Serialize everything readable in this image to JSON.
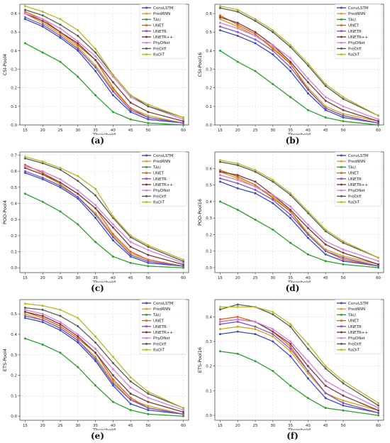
{
  "chart_data": [
    {
      "type": "line",
      "panel_label": "(a)",
      "xlabel": "Threshold",
      "ylabel": "CSI-Pool4",
      "x": [
        15,
        20,
        25,
        30,
        35,
        40,
        45,
        50,
        60
      ],
      "ylim": [
        0,
        0.65
      ],
      "yticks": [
        0.0,
        0.1,
        0.2,
        0.3,
        0.4,
        0.5,
        0.6
      ],
      "grid": true,
      "legend": "top-right",
      "series": [
        {
          "name": "ConvLSTM",
          "color": "#3b4cc0",
          "values": [
            0.57,
            0.53,
            0.47,
            0.4,
            0.29,
            0.16,
            0.07,
            0.03,
            0.01
          ]
        },
        {
          "name": "PredRNN",
          "color": "#d4a017",
          "values": [
            0.6,
            0.55,
            0.49,
            0.42,
            0.32,
            0.19,
            0.09,
            0.05,
            0.01
          ]
        },
        {
          "name": "TAU",
          "color": "#2ca02c",
          "values": [
            0.44,
            0.39,
            0.34,
            0.26,
            0.16,
            0.07,
            0.03,
            0.01,
            0.0
          ]
        },
        {
          "name": "UNET",
          "color": "#e06020",
          "values": [
            0.61,
            0.57,
            0.5,
            0.43,
            0.35,
            0.2,
            0.09,
            0.04,
            0.01
          ]
        },
        {
          "name": "UNETR",
          "color": "#7e57c2",
          "values": [
            0.58,
            0.54,
            0.48,
            0.41,
            0.31,
            0.18,
            0.08,
            0.04,
            0.01
          ]
        },
        {
          "name": "UNETR++",
          "color": "#7a3b3b",
          "values": [
            0.6,
            0.56,
            0.5,
            0.44,
            0.35,
            0.23,
            0.12,
            0.07,
            0.02
          ]
        },
        {
          "name": "PhyDNet",
          "color": "#d47fd8",
          "values": [
            0.6,
            0.57,
            0.52,
            0.45,
            0.37,
            0.26,
            0.15,
            0.1,
            0.03
          ]
        },
        {
          "name": "PreDiff",
          "color": "#5a5a5a",
          "values": [
            0.62,
            0.59,
            0.54,
            0.48,
            0.39,
            0.27,
            0.16,
            0.1,
            0.04
          ]
        },
        {
          "name": "RaDiT",
          "color": "#b8b820",
          "values": [
            0.64,
            0.61,
            0.57,
            0.51,
            0.41,
            0.27,
            0.16,
            0.11,
            0.04
          ]
        }
      ]
    },
    {
      "type": "line",
      "panel_label": "(b)",
      "xlabel": "Threshold",
      "ylabel": "CSI-Pool16",
      "x": [
        15,
        20,
        25,
        30,
        35,
        40,
        45,
        50,
        60
      ],
      "ylim": [
        0,
        0.65
      ],
      "yticks": [
        0.0,
        0.1,
        0.2,
        0.3,
        0.4,
        0.5,
        0.6
      ],
      "grid": true,
      "legend": "top-right",
      "series": [
        {
          "name": "ConvLSTM",
          "color": "#3b4cc0",
          "values": [
            0.51,
            0.48,
            0.44,
            0.38,
            0.29,
            0.17,
            0.08,
            0.04,
            0.01
          ]
        },
        {
          "name": "PredRNN",
          "color": "#d4a017",
          "values": [
            0.57,
            0.53,
            0.48,
            0.42,
            0.33,
            0.2,
            0.1,
            0.06,
            0.02
          ]
        },
        {
          "name": "TAU",
          "color": "#2ca02c",
          "values": [
            0.4,
            0.34,
            0.29,
            0.22,
            0.15,
            0.08,
            0.04,
            0.02,
            0.0
          ]
        },
        {
          "name": "UNET",
          "color": "#e06020",
          "values": [
            0.59,
            0.54,
            0.49,
            0.41,
            0.33,
            0.19,
            0.09,
            0.05,
            0.01
          ]
        },
        {
          "name": "UNETR",
          "color": "#7e57c2",
          "values": [
            0.53,
            0.5,
            0.46,
            0.4,
            0.31,
            0.19,
            0.09,
            0.05,
            0.01
          ]
        },
        {
          "name": "UNETR++",
          "color": "#7a3b3b",
          "values": [
            0.58,
            0.55,
            0.5,
            0.43,
            0.34,
            0.23,
            0.13,
            0.08,
            0.02
          ]
        },
        {
          "name": "PhyDNet",
          "color": "#d47fd8",
          "values": [
            0.55,
            0.52,
            0.48,
            0.43,
            0.36,
            0.25,
            0.15,
            0.1,
            0.03
          ]
        },
        {
          "name": "PreDiff",
          "color": "#5a5a5a",
          "values": [
            0.63,
            0.61,
            0.56,
            0.5,
            0.42,
            0.32,
            0.21,
            0.14,
            0.05
          ]
        },
        {
          "name": "RaDiT",
          "color": "#b8b820",
          "values": [
            0.64,
            0.62,
            0.57,
            0.51,
            0.43,
            0.33,
            0.22,
            0.15,
            0.05
          ]
        }
      ]
    },
    {
      "type": "line",
      "panel_label": "(c)",
      "xlabel": "Threshold",
      "ylabel": "POD-Pool4",
      "x": [
        15,
        20,
        25,
        30,
        35,
        40,
        45,
        50,
        60
      ],
      "ylim": [
        -0.03,
        0.72
      ],
      "yticks": [
        0.0,
        0.1,
        0.2,
        0.3,
        0.4,
        0.5,
        0.6,
        0.7
      ],
      "grid": true,
      "legend": "top-right",
      "series": [
        {
          "name": "ConvLSTM",
          "color": "#3b4cc0",
          "values": [
            0.59,
            0.55,
            0.5,
            0.43,
            0.31,
            0.17,
            0.07,
            0.03,
            0.01
          ]
        },
        {
          "name": "PredRNN",
          "color": "#d4a017",
          "values": [
            0.62,
            0.58,
            0.52,
            0.44,
            0.34,
            0.2,
            0.09,
            0.05,
            0.01
          ]
        },
        {
          "name": "TAU",
          "color": "#2ca02c",
          "values": [
            0.46,
            0.41,
            0.35,
            0.27,
            0.16,
            0.07,
            0.03,
            0.01,
            0.0
          ]
        },
        {
          "name": "UNET",
          "color": "#e06020",
          "values": [
            0.64,
            0.59,
            0.53,
            0.46,
            0.37,
            0.21,
            0.1,
            0.05,
            0.01
          ]
        },
        {
          "name": "UNETR",
          "color": "#7e57c2",
          "values": [
            0.6,
            0.56,
            0.51,
            0.44,
            0.33,
            0.19,
            0.08,
            0.04,
            0.01
          ]
        },
        {
          "name": "UNETR++",
          "color": "#7a3b3b",
          "values": [
            0.62,
            0.58,
            0.53,
            0.46,
            0.37,
            0.25,
            0.13,
            0.08,
            0.02
          ]
        },
        {
          "name": "PhyDNet",
          "color": "#d47fd8",
          "values": [
            0.63,
            0.6,
            0.55,
            0.48,
            0.39,
            0.27,
            0.16,
            0.11,
            0.03
          ]
        },
        {
          "name": "PreDiff",
          "color": "#5a5a5a",
          "values": [
            0.68,
            0.65,
            0.61,
            0.54,
            0.45,
            0.31,
            0.19,
            0.13,
            0.04
          ]
        },
        {
          "name": "RaDiT",
          "color": "#b8b820",
          "values": [
            0.69,
            0.66,
            0.62,
            0.57,
            0.49,
            0.32,
            0.2,
            0.14,
            0.05
          ]
        }
      ]
    },
    {
      "type": "line",
      "panel_label": "(d)",
      "xlabel": "Threshold",
      "ylabel": "POD-Pool16",
      "x": [
        15,
        20,
        25,
        30,
        35,
        40,
        45,
        50,
        60
      ],
      "ylim": [
        -0.03,
        0.7
      ],
      "yticks": [
        0.0,
        0.1,
        0.2,
        0.3,
        0.4,
        0.5,
        0.6
      ],
      "grid": true,
      "legend": "top-right",
      "series": [
        {
          "name": "ConvLSTM",
          "color": "#3b4cc0",
          "values": [
            0.52,
            0.48,
            0.45,
            0.39,
            0.3,
            0.18,
            0.08,
            0.04,
            0.01
          ]
        },
        {
          "name": "PredRNN",
          "color": "#d4a017",
          "values": [
            0.58,
            0.54,
            0.49,
            0.43,
            0.34,
            0.21,
            0.11,
            0.07,
            0.02
          ]
        },
        {
          "name": "TAU",
          "color": "#2ca02c",
          "values": [
            0.4,
            0.35,
            0.29,
            0.23,
            0.15,
            0.08,
            0.04,
            0.02,
            0.0
          ]
        },
        {
          "name": "UNET",
          "color": "#e06020",
          "values": [
            0.59,
            0.55,
            0.5,
            0.42,
            0.34,
            0.2,
            0.1,
            0.05,
            0.01
          ]
        },
        {
          "name": "UNETR",
          "color": "#7e57c2",
          "values": [
            0.54,
            0.51,
            0.47,
            0.41,
            0.32,
            0.2,
            0.1,
            0.06,
            0.01
          ]
        },
        {
          "name": "UNETR++",
          "color": "#7a3b3b",
          "values": [
            0.58,
            0.56,
            0.52,
            0.44,
            0.35,
            0.24,
            0.14,
            0.09,
            0.02
          ]
        },
        {
          "name": "PhyDNet",
          "color": "#d47fd8",
          "values": [
            0.56,
            0.53,
            0.49,
            0.44,
            0.37,
            0.26,
            0.16,
            0.11,
            0.04
          ]
        },
        {
          "name": "PreDiff",
          "color": "#5a5a5a",
          "values": [
            0.64,
            0.62,
            0.58,
            0.52,
            0.44,
            0.33,
            0.22,
            0.15,
            0.06
          ]
        },
        {
          "name": "RaDiT",
          "color": "#b8b820",
          "values": [
            0.65,
            0.63,
            0.59,
            0.53,
            0.45,
            0.34,
            0.23,
            0.16,
            0.06
          ]
        }
      ]
    },
    {
      "type": "line",
      "panel_label": "(e)",
      "xlabel": "Threshold",
      "ylabel": "ETS-Pool4",
      "x": [
        15,
        20,
        25,
        30,
        35,
        40,
        45,
        50,
        60
      ],
      "ylim": [
        -0.02,
        0.57
      ],
      "yticks": [
        0.0,
        0.1,
        0.2,
        0.3,
        0.4,
        0.5
      ],
      "grid": true,
      "legend": "top-right",
      "series": [
        {
          "name": "ConvLSTM",
          "color": "#3b4cc0",
          "values": [
            0.48,
            0.46,
            0.42,
            0.36,
            0.27,
            0.15,
            0.06,
            0.03,
            0.01
          ]
        },
        {
          "name": "PredRNN",
          "color": "#d4a017",
          "values": [
            0.5,
            0.47,
            0.43,
            0.37,
            0.29,
            0.17,
            0.08,
            0.05,
            0.01
          ]
        },
        {
          "name": "TAU",
          "color": "#2ca02c",
          "values": [
            0.38,
            0.35,
            0.31,
            0.24,
            0.15,
            0.07,
            0.03,
            0.01,
            0.0
          ]
        },
        {
          "name": "UNET",
          "color": "#e06020",
          "values": [
            0.51,
            0.48,
            0.44,
            0.38,
            0.31,
            0.18,
            0.09,
            0.04,
            0.01
          ]
        },
        {
          "name": "UNETR",
          "color": "#7e57c2",
          "values": [
            0.49,
            0.47,
            0.43,
            0.37,
            0.28,
            0.16,
            0.08,
            0.04,
            0.01
          ]
        },
        {
          "name": "UNETR++",
          "color": "#7a3b3b",
          "values": [
            0.51,
            0.49,
            0.45,
            0.39,
            0.31,
            0.2,
            0.11,
            0.07,
            0.02
          ]
        },
        {
          "name": "PhyDNet",
          "color": "#d47fd8",
          "values": [
            0.52,
            0.5,
            0.46,
            0.4,
            0.33,
            0.23,
            0.14,
            0.09,
            0.03
          ]
        },
        {
          "name": "PreDiff",
          "color": "#5a5a5a",
          "values": [
            0.53,
            0.52,
            0.49,
            0.44,
            0.36,
            0.26,
            0.17,
            0.11,
            0.04
          ]
        },
        {
          "name": "RaDiT",
          "color": "#b8b820",
          "values": [
            0.55,
            0.54,
            0.52,
            0.48,
            0.39,
            0.29,
            0.19,
            0.12,
            0.04
          ]
        }
      ]
    },
    {
      "type": "line",
      "panel_label": "(f)",
      "xlabel": "Threshold",
      "ylabel": "ETS-Pool16",
      "x": [
        15,
        20,
        25,
        30,
        35,
        40,
        45,
        50,
        60
      ],
      "ylim": [
        -0.02,
        0.47
      ],
      "yticks": [
        0.0,
        0.1,
        0.2,
        0.3,
        0.4
      ],
      "grid": true,
      "legend": "top-right",
      "series": [
        {
          "name": "ConvLSTM",
          "color": "#3b4cc0",
          "values": [
            0.33,
            0.34,
            0.33,
            0.3,
            0.24,
            0.15,
            0.07,
            0.04,
            0.01
          ]
        },
        {
          "name": "PredRNN",
          "color": "#d4a017",
          "values": [
            0.35,
            0.36,
            0.35,
            0.32,
            0.26,
            0.17,
            0.09,
            0.06,
            0.02
          ]
        },
        {
          "name": "TAU",
          "color": "#2ca02c",
          "values": [
            0.26,
            0.25,
            0.22,
            0.18,
            0.12,
            0.07,
            0.03,
            0.02,
            0.0
          ]
        },
        {
          "name": "UNET",
          "color": "#e06020",
          "values": [
            0.39,
            0.4,
            0.38,
            0.34,
            0.28,
            0.18,
            0.09,
            0.05,
            0.01
          ]
        },
        {
          "name": "UNETR",
          "color": "#7e57c2",
          "values": [
            0.37,
            0.38,
            0.36,
            0.33,
            0.27,
            0.18,
            0.09,
            0.05,
            0.01
          ]
        },
        {
          "name": "UNETR++",
          "color": "#7a3b3b",
          "values": [
            0.38,
            0.39,
            0.38,
            0.34,
            0.29,
            0.2,
            0.12,
            0.08,
            0.02
          ]
        },
        {
          "name": "PhyDNet",
          "color": "#d47fd8",
          "values": [
            0.38,
            0.39,
            0.38,
            0.35,
            0.3,
            0.22,
            0.14,
            0.1,
            0.03
          ]
        },
        {
          "name": "PreDiff",
          "color": "#5a5a5a",
          "values": [
            0.43,
            0.45,
            0.44,
            0.41,
            0.36,
            0.27,
            0.19,
            0.13,
            0.04
          ]
        },
        {
          "name": "RaDiT",
          "color": "#b8b820",
          "values": [
            0.44,
            0.44,
            0.44,
            0.42,
            0.37,
            0.29,
            0.2,
            0.14,
            0.05
          ]
        }
      ]
    }
  ]
}
